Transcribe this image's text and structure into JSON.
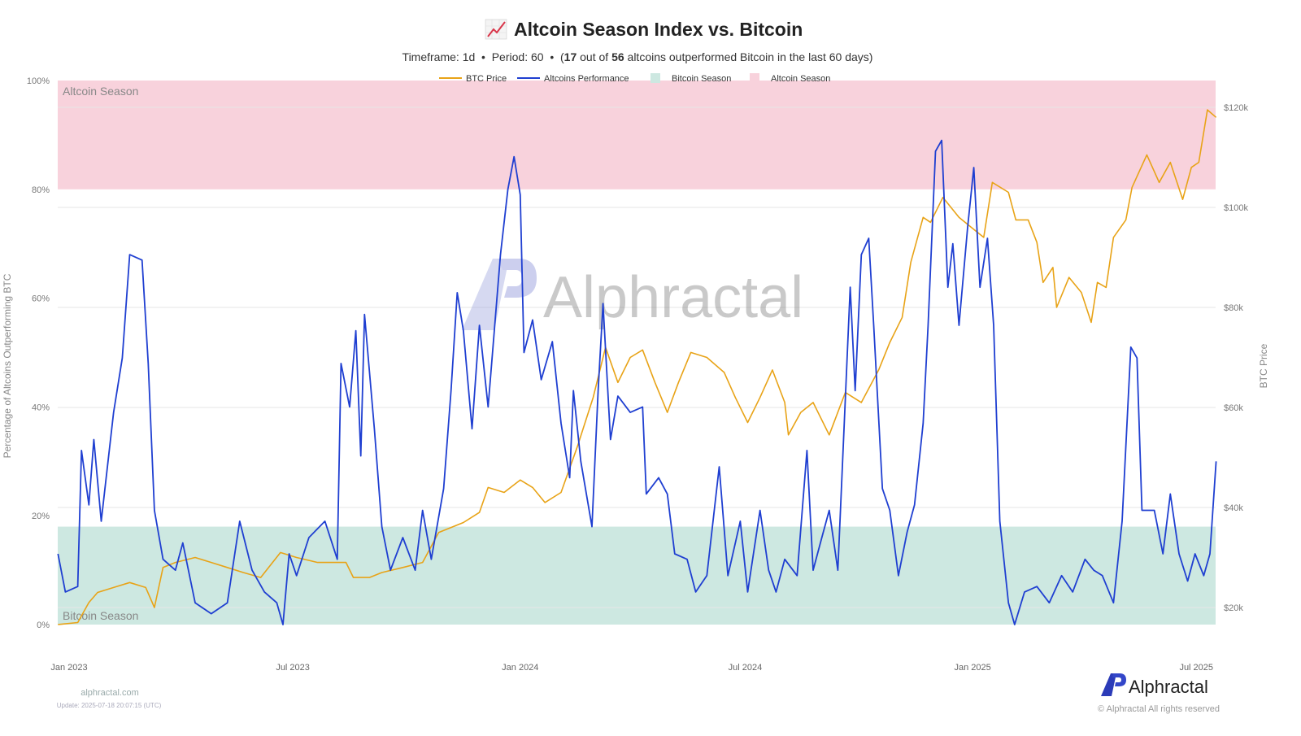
{
  "header": {
    "icon": "chart-increasing-icon",
    "title": "Altcoin Season Index vs. Bitcoin",
    "subtitle_prefix": "Timeframe: 1d  •  Period: 60  •  (",
    "subtitle_count": "17",
    "subtitle_mid": " out of ",
    "subtitle_total": "56",
    "subtitle_suffix": " altcoins outperformed Bitcoin in the last 60 days)"
  },
  "footer": {
    "site": "alphractal.com",
    "update": "Update: 2025-07-18 20:07:15 (UTC)",
    "brand": "Alphractal",
    "copyright": "© Alphractal All rights reserved",
    "watermark": "Alphractal"
  },
  "chart_data": {
    "type": "line",
    "title": "Altcoin Season Index vs. Bitcoin",
    "ylabel": "Percentage of Altcoins Outperforming BTC",
    "y2label": "BTC Price",
    "ylim": [
      0,
      100
    ],
    "y2lim": [
      16000,
      125000
    ],
    "grid": true,
    "legend_position": "top-center",
    "legend": [
      "BTC Price",
      "Altcoins Performance",
      "Bitcoin Season",
      "Altcoin Season"
    ],
    "y_ticks": [
      "0%",
      "20%",
      "40%",
      "60%",
      "80%",
      "100%"
    ],
    "y2_ticks": [
      "$20k",
      "$40k",
      "$60k",
      "$80k",
      "$100k",
      "$120k"
    ],
    "x_ticks": [
      {
        "date": "2023-01-01",
        "label": "Jan 2023"
      },
      {
        "date": "2023-07-01",
        "label": "Jul 2023"
      },
      {
        "date": "2024-01-01",
        "label": "Jan 2024"
      },
      {
        "date": "2024-07-01",
        "label": "Jul 2024"
      },
      {
        "date": "2025-01-01",
        "label": "Jan 2025"
      },
      {
        "date": "2025-07-01",
        "label": "Jul 2025"
      }
    ],
    "bands": [
      {
        "name": "Bitcoin Season",
        "from": 0,
        "to": 18,
        "color": "#cde8e1",
        "label": "Bitcoin Season"
      },
      {
        "name": "Altcoin Season",
        "from": 80,
        "to": 100,
        "color": "#f8d2dc",
        "label": "Altcoin Season"
      }
    ],
    "series": [
      {
        "name": "BTC Price",
        "axis": "right",
        "color": "#e8a317",
        "points": [
          [
            "2022-12-23",
            16600
          ],
          [
            "2023-01-08",
            17000
          ],
          [
            "2023-01-17",
            21000
          ],
          [
            "2023-01-24",
            23000
          ],
          [
            "2023-02-06",
            24000
          ],
          [
            "2023-02-19",
            25000
          ],
          [
            "2023-03-04",
            24000
          ],
          [
            "2023-03-11",
            20000
          ],
          [
            "2023-03-18",
            28000
          ],
          [
            "2023-03-28",
            29000
          ],
          [
            "2023-04-13",
            30000
          ],
          [
            "2023-04-26",
            29000
          ],
          [
            "2023-05-09",
            28000
          ],
          [
            "2023-05-22",
            27000
          ],
          [
            "2023-06-05",
            26000
          ],
          [
            "2023-06-21",
            31000
          ],
          [
            "2023-07-04",
            30000
          ],
          [
            "2023-07-21",
            29000
          ],
          [
            "2023-08-13",
            29000
          ],
          [
            "2023-08-19",
            26000
          ],
          [
            "2023-09-01",
            26000
          ],
          [
            "2023-09-11",
            27000
          ],
          [
            "2023-09-28",
            28000
          ],
          [
            "2023-10-14",
            29000
          ],
          [
            "2023-10-27",
            35000
          ],
          [
            "2023-11-16",
            37000
          ],
          [
            "2023-11-29",
            39000
          ],
          [
            "2023-12-06",
            44000
          ],
          [
            "2023-12-19",
            43000
          ],
          [
            "2024-01-01",
            45500
          ],
          [
            "2024-01-11",
            44000
          ],
          [
            "2024-01-21",
            41000
          ],
          [
            "2024-02-03",
            43000
          ],
          [
            "2024-02-16",
            52000
          ],
          [
            "2024-02-29",
            62000
          ],
          [
            "2024-03-10",
            72000
          ],
          [
            "2024-03-20",
            65000
          ],
          [
            "2024-03-30",
            70000
          ],
          [
            "2024-04-09",
            71500
          ],
          [
            "2024-04-19",
            65000
          ],
          [
            "2024-04-29",
            59000
          ],
          [
            "2024-05-08",
            65000
          ],
          [
            "2024-05-18",
            71000
          ],
          [
            "2024-05-31",
            70000
          ],
          [
            "2024-06-14",
            67000
          ],
          [
            "2024-06-23",
            62000
          ],
          [
            "2024-07-03",
            57000
          ],
          [
            "2024-07-13",
            62000
          ],
          [
            "2024-07-23",
            67500
          ],
          [
            "2024-08-02",
            61000
          ],
          [
            "2024-08-05",
            54500
          ],
          [
            "2024-08-15",
            59000
          ],
          [
            "2024-08-25",
            61000
          ],
          [
            "2024-09-07",
            54500
          ],
          [
            "2024-09-20",
            63000
          ],
          [
            "2024-10-03",
            61000
          ],
          [
            "2024-10-17",
            67500
          ],
          [
            "2024-10-26",
            73000
          ],
          [
            "2024-11-05",
            78000
          ],
          [
            "2024-11-12",
            89000
          ],
          [
            "2024-11-22",
            98000
          ],
          [
            "2024-11-28",
            97000
          ],
          [
            "2024-12-08",
            102000
          ],
          [
            "2024-12-21",
            98000
          ],
          [
            "2024-12-31",
            96000
          ],
          [
            "2025-01-10",
            94000
          ],
          [
            "2025-01-17",
            105000
          ],
          [
            "2025-01-30",
            103000
          ],
          [
            "2025-02-05",
            97500
          ],
          [
            "2025-02-15",
            97500
          ],
          [
            "2025-02-22",
            93000
          ],
          [
            "2025-02-27",
            85000
          ],
          [
            "2025-03-07",
            88000
          ],
          [
            "2025-03-10",
            80000
          ],
          [
            "2025-03-20",
            86000
          ],
          [
            "2025-03-30",
            83000
          ],
          [
            "2025-04-07",
            77000
          ],
          [
            "2025-04-12",
            85000
          ],
          [
            "2025-04-19",
            84000
          ],
          [
            "2025-04-25",
            94000
          ],
          [
            "2025-05-05",
            97500
          ],
          [
            "2025-05-10",
            104000
          ],
          [
            "2025-05-22",
            110500
          ],
          [
            "2025-06-01",
            105000
          ],
          [
            "2025-06-10",
            109000
          ],
          [
            "2025-06-20",
            101600
          ],
          [
            "2025-06-27",
            108000
          ],
          [
            "2025-07-03",
            109000
          ],
          [
            "2025-07-10",
            119500
          ],
          [
            "2025-07-17",
            118000
          ]
        ]
      },
      {
        "name": "Altcoins Performance",
        "axis": "left",
        "color": "#1f3fd1",
        "points": [
          [
            "2022-12-23",
            13
          ],
          [
            "2022-12-29",
            6
          ],
          [
            "2023-01-08",
            7
          ],
          [
            "2023-01-11",
            32
          ],
          [
            "2023-01-17",
            22
          ],
          [
            "2023-01-21",
            34
          ],
          [
            "2023-01-27",
            19
          ],
          [
            "2023-02-06",
            39
          ],
          [
            "2023-02-13",
            49
          ],
          [
            "2023-02-19",
            68
          ],
          [
            "2023-03-01",
            67
          ],
          [
            "2023-03-06",
            48
          ],
          [
            "2023-03-11",
            21
          ],
          [
            "2023-03-18",
            12
          ],
          [
            "2023-03-28",
            10
          ],
          [
            "2023-04-03",
            15
          ],
          [
            "2023-04-13",
            4
          ],
          [
            "2023-04-26",
            2
          ],
          [
            "2023-05-09",
            4
          ],
          [
            "2023-05-19",
            19
          ],
          [
            "2023-05-29",
            10
          ],
          [
            "2023-06-08",
            6
          ],
          [
            "2023-06-18",
            4
          ],
          [
            "2023-06-23",
            0
          ],
          [
            "2023-06-28",
            13
          ],
          [
            "2023-07-04",
            9
          ],
          [
            "2023-07-14",
            16
          ],
          [
            "2023-07-27",
            19
          ],
          [
            "2023-08-06",
            12
          ],
          [
            "2023-08-09",
            48
          ],
          [
            "2023-08-16",
            40
          ],
          [
            "2023-08-21",
            54
          ],
          [
            "2023-08-25",
            31
          ],
          [
            "2023-08-28",
            57
          ],
          [
            "2023-09-05",
            36
          ],
          [
            "2023-09-11",
            18
          ],
          [
            "2023-09-18",
            10
          ],
          [
            "2023-09-28",
            16
          ],
          [
            "2023-10-08",
            10
          ],
          [
            "2023-10-14",
            21
          ],
          [
            "2023-10-21",
            12
          ],
          [
            "2023-10-31",
            25
          ],
          [
            "2023-11-06",
            43
          ],
          [
            "2023-11-11",
            61
          ],
          [
            "2023-11-16",
            54
          ],
          [
            "2023-11-23",
            36
          ],
          [
            "2023-11-29",
            55
          ],
          [
            "2023-12-06",
            40
          ],
          [
            "2023-12-16",
            68
          ],
          [
            "2023-12-22",
            80
          ],
          [
            "2023-12-27",
            86
          ],
          [
            "2024-01-01",
            79
          ],
          [
            "2024-01-04",
            50
          ],
          [
            "2024-01-11",
            56
          ],
          [
            "2024-01-18",
            45
          ],
          [
            "2024-01-27",
            52
          ],
          [
            "2024-02-03",
            37
          ],
          [
            "2024-02-10",
            27
          ],
          [
            "2024-02-13",
            43
          ],
          [
            "2024-02-19",
            30
          ],
          [
            "2024-02-28",
            18
          ],
          [
            "2024-03-04",
            43
          ],
          [
            "2024-03-08",
            59
          ],
          [
            "2024-03-14",
            34
          ],
          [
            "2024-03-20",
            42
          ],
          [
            "2024-03-30",
            39
          ],
          [
            "2024-04-09",
            40
          ],
          [
            "2024-04-12",
            24
          ],
          [
            "2024-04-22",
            27
          ],
          [
            "2024-04-29",
            24
          ],
          [
            "2024-05-05",
            13
          ],
          [
            "2024-05-15",
            12
          ],
          [
            "2024-05-22",
            6
          ],
          [
            "2024-05-31",
            9
          ],
          [
            "2024-06-10",
            29
          ],
          [
            "2024-06-17",
            9
          ],
          [
            "2024-06-27",
            19
          ],
          [
            "2024-07-03",
            6
          ],
          [
            "2024-07-13",
            21
          ],
          [
            "2024-07-20",
            10
          ],
          [
            "2024-07-26",
            6
          ],
          [
            "2024-08-02",
            12
          ],
          [
            "2024-08-12",
            9
          ],
          [
            "2024-08-20",
            32
          ],
          [
            "2024-08-25",
            10
          ],
          [
            "2024-09-01",
            16
          ],
          [
            "2024-09-07",
            21
          ],
          [
            "2024-09-14",
            10
          ],
          [
            "2024-09-24",
            62
          ],
          [
            "2024-09-28",
            43
          ],
          [
            "2024-10-03",
            68
          ],
          [
            "2024-10-09",
            71
          ],
          [
            "2024-10-13",
            55
          ],
          [
            "2024-10-20",
            25
          ],
          [
            "2024-10-26",
            21
          ],
          [
            "2024-11-02",
            9
          ],
          [
            "2024-11-09",
            17
          ],
          [
            "2024-11-15",
            22
          ],
          [
            "2024-11-22",
            37
          ],
          [
            "2024-11-26",
            55
          ],
          [
            "2024-12-02",
            87
          ],
          [
            "2024-12-07",
            89
          ],
          [
            "2024-12-12",
            62
          ],
          [
            "2024-12-16",
            70
          ],
          [
            "2024-12-21",
            55
          ],
          [
            "2024-12-28",
            73
          ],
          [
            "2025-01-02",
            84
          ],
          [
            "2025-01-07",
            62
          ],
          [
            "2025-01-13",
            71
          ],
          [
            "2025-01-18",
            55
          ],
          [
            "2025-01-23",
            19
          ],
          [
            "2025-01-30",
            4
          ],
          [
            "2025-02-04",
            0
          ],
          [
            "2025-02-12",
            6
          ],
          [
            "2025-02-22",
            7
          ],
          [
            "2025-03-04",
            4
          ],
          [
            "2025-03-14",
            9
          ],
          [
            "2025-03-23",
            6
          ],
          [
            "2025-04-02",
            12
          ],
          [
            "2025-04-09",
            10
          ],
          [
            "2025-04-16",
            9
          ],
          [
            "2025-04-25",
            4
          ],
          [
            "2025-05-02",
            19
          ],
          [
            "2025-05-09",
            51
          ],
          [
            "2025-05-14",
            49
          ],
          [
            "2025-05-18",
            21
          ],
          [
            "2025-05-28",
            21
          ],
          [
            "2025-06-04",
            13
          ],
          [
            "2025-06-10",
            24
          ],
          [
            "2025-06-17",
            13
          ],
          [
            "2025-06-24",
            8
          ],
          [
            "2025-06-30",
            13
          ],
          [
            "2025-07-07",
            9
          ],
          [
            "2025-07-12",
            13
          ],
          [
            "2025-07-17",
            30
          ]
        ]
      }
    ]
  }
}
